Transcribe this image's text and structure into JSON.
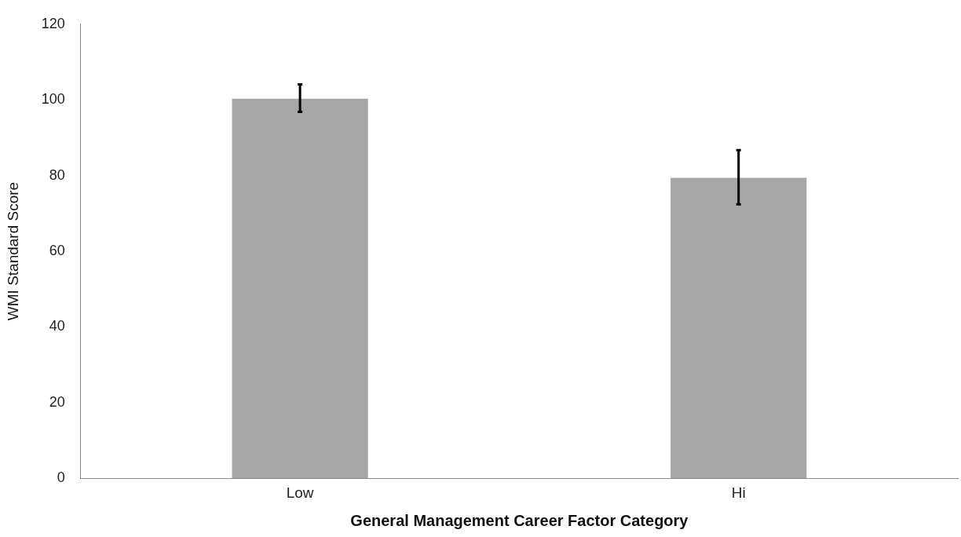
{
  "chart_data": {
    "type": "bar",
    "xlabel": "General Management Career Factor Category",
    "ylabel": "WMI Standard Score",
    "categories": [
      "Low",
      "Hi"
    ],
    "values": [
      100.3,
      79.4
    ],
    "errors": [
      [
        96.8,
        104.1
      ],
      [
        72.4,
        86.7
      ]
    ],
    "color": "#a6a6a6",
    "ylim": [
      0,
      120
    ],
    "yticks": [
      0,
      20,
      40,
      60,
      80,
      100,
      120
    ],
    "grid": false,
    "legend": false
  }
}
